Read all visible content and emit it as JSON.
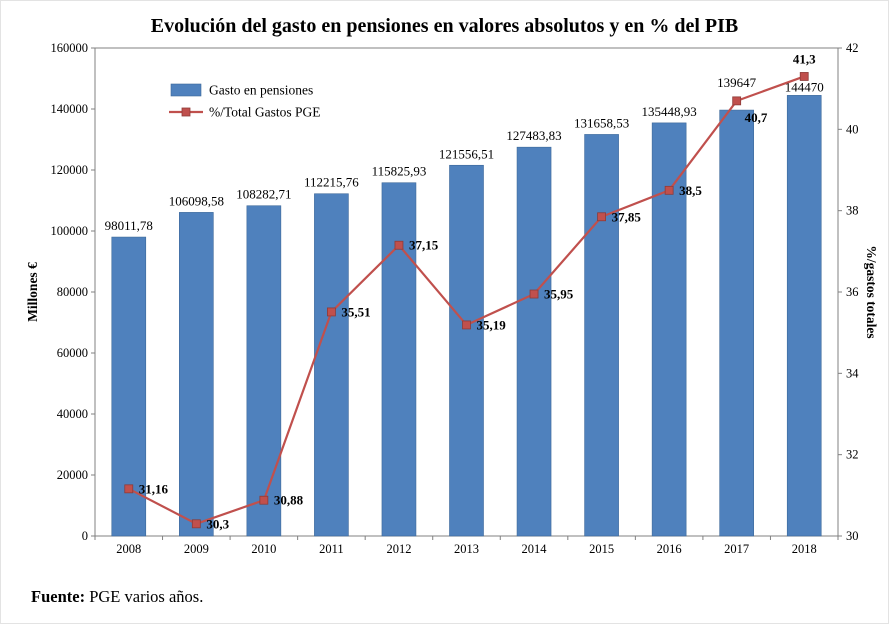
{
  "chart_data": {
    "type": "combo-bar-line",
    "title": "Evolución del gasto en pensiones en valores absolutos y en % del PIB",
    "categories": [
      "2008",
      "2009",
      "2010",
      "2011",
      "2012",
      "2013",
      "2014",
      "2015",
      "2016",
      "2017",
      "2018"
    ],
    "series": [
      {
        "name": "Gasto en pensiones",
        "type": "bar",
        "axis": "left",
        "color": "#4f81bd",
        "values": [
          98011.78,
          106098.58,
          108282.71,
          112215.76,
          115825.93,
          121556.51,
          127483.83,
          131658.53,
          135448.93,
          139647,
          144470
        ],
        "labels": [
          "98011,78",
          "106098,58",
          "108282,71",
          "112215,76",
          "115825,93",
          "121556,51",
          "127483,83",
          "131658,53",
          "135448,93",
          "139647",
          "144470"
        ],
        "label_dy": [
          0,
          0,
          0,
          0,
          0,
          0,
          0,
          0,
          0,
          -16,
          3
        ]
      },
      {
        "name": "%/Total Gastos PGE",
        "type": "line",
        "axis": "right",
        "color": "#c0504d",
        "values": [
          31.16,
          30.3,
          30.88,
          35.51,
          37.15,
          35.19,
          35.95,
          37.85,
          38.5,
          40.7,
          41.3
        ],
        "labels": [
          "31,16",
          "30,3",
          "30,88",
          "35,51",
          "37,15",
          "35,19",
          "35,95",
          "37,85",
          "38,5",
          "40,7",
          "41,3"
        ],
        "label_positions": [
          "right",
          "right",
          "right",
          "right",
          "right",
          "right",
          "right",
          "right",
          "right",
          "below-right",
          "above"
        ]
      }
    ],
    "left_axis": {
      "title": "Millones €",
      "min": 0,
      "max": 160000,
      "step": 20000,
      "tick_labels": [
        "0",
        "20000",
        "40000",
        "60000",
        "80000",
        "100000",
        "120000",
        "140000",
        "160000"
      ]
    },
    "right_axis": {
      "title": "%/gastos totales",
      "min": 30,
      "max": 42,
      "step": 2,
      "tick_labels": [
        "30",
        "32",
        "34",
        "36",
        "38",
        "40",
        "42"
      ]
    },
    "grid": false,
    "legend": {
      "position": "top-left-inset",
      "entries": [
        "Gasto en pensiones",
        "%/Total Gastos PGE"
      ]
    }
  },
  "footer": {
    "label": "Fuente:",
    "text": "PGE varios años."
  }
}
